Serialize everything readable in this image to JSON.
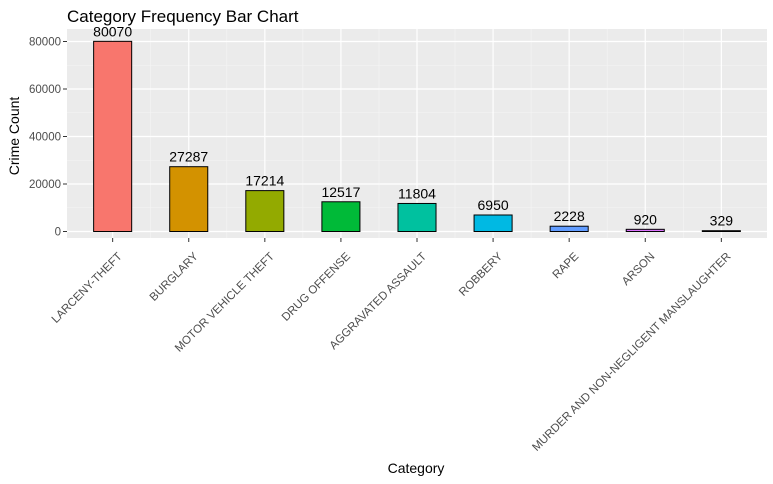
{
  "chart_data": {
    "type": "bar",
    "title": "Category Frequency Bar Chart",
    "xlabel": "Category",
    "ylabel": "Crime Count",
    "categories": [
      "LARCENY-THEFT",
      "BURGLARY",
      "MOTOR VEHICLE THEFT",
      "DRUG OFFENSE",
      "AGGRAVATED ASSAULT",
      "ROBBERY",
      "RAPE",
      "ARSON",
      "MURDER AND NON-NEGLIGENT MANSLAUGHTER"
    ],
    "values": [
      80070,
      27287,
      17214,
      12517,
      11804,
      6950,
      2228,
      920,
      329
    ],
    "data_labels": [
      "80070",
      "27287",
      "17214",
      "12517",
      "11804",
      "6950",
      "2228",
      "920",
      "329"
    ],
    "colors": [
      "#F8766D",
      "#D39200",
      "#93AA00",
      "#00BA38",
      "#00C19F",
      "#00B9E3",
      "#619CFF",
      "#DB72FB",
      "#FF61C3"
    ],
    "ylim": [
      0,
      82000
    ],
    "yticks": [
      0,
      20000,
      40000,
      60000,
      80000
    ],
    "ytick_labels": [
      "0",
      "20000",
      "40000",
      "60000",
      "80000"
    ],
    "grid": true,
    "legend": "none",
    "panel_background": "#EBEBEB"
  }
}
